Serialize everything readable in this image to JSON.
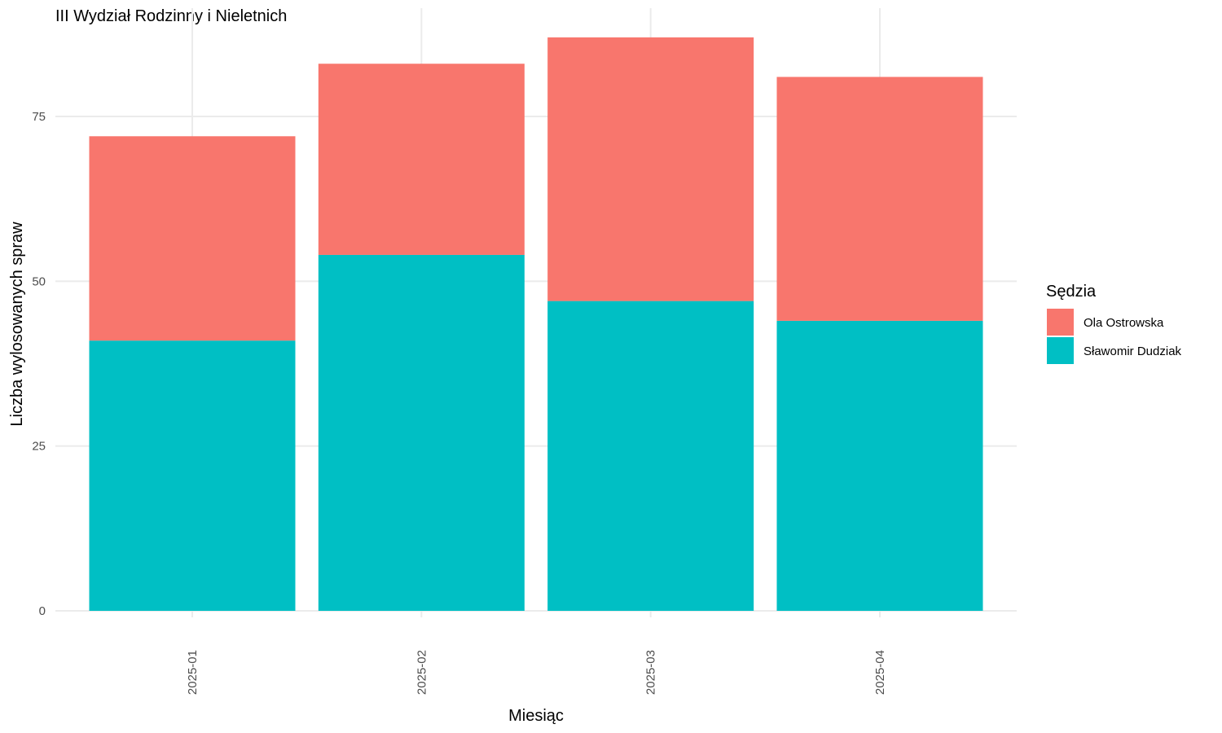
{
  "chart_data": {
    "type": "bar",
    "stacked": true,
    "title": "III Wydział Rodzinny i Nieletnich",
    "xlabel": "Miesiąc",
    "ylabel": "Liczba wylosowanych spraw",
    "categories": [
      "2025-01",
      "2025-02",
      "2025-03",
      "2025-04"
    ],
    "series": [
      {
        "name": "Sławomir Dudziak",
        "color": "#00BFC4",
        "values": [
          41,
          54,
          47,
          44
        ]
      },
      {
        "name": "Ola Ostrowska",
        "color": "#F8766D",
        "values": [
          31,
          29,
          40,
          37
        ]
      }
    ],
    "ylim": [
      0,
      90
    ],
    "yticks": [
      0,
      25,
      50,
      75
    ],
    "grid": true,
    "legend": {
      "title": "Sędzia",
      "placement": "right",
      "order": [
        "Ola Ostrowska",
        "Sławomir Dudziak"
      ]
    },
    "x_tick_rotation": "vertical"
  }
}
